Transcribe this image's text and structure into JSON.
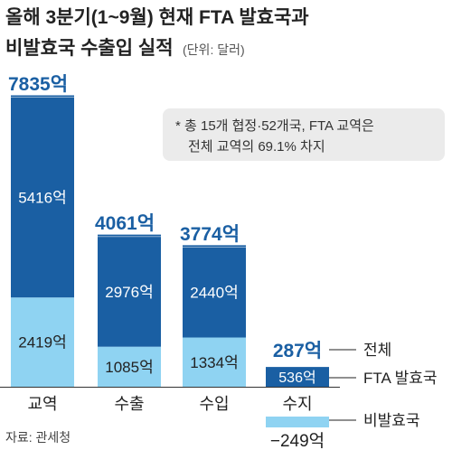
{
  "chart_data": {
    "type": "bar",
    "title": "올해 3분기(1~9월) 현재 FTA 발효국과",
    "subtitle_main": "비발효국 수출입 실적",
    "subtitle_unit": "(단위: 달러)",
    "note": [
      "* 총 15개 협정·52개국, FTA 교역은",
      "전체 교역의 69.1% 차지"
    ],
    "source": "자료: 관세청",
    "categories": [
      "교역",
      "수출",
      "수입",
      "수지"
    ],
    "series": [
      {
        "name": "FTA 발효국",
        "values": [
          5416,
          2976,
          2440,
          536
        ],
        "labels": [
          "5416억",
          "2976억",
          "2440억",
          "536억"
        ]
      },
      {
        "name": "비발효국",
        "values": [
          2419,
          1085,
          1334,
          -249
        ],
        "labels": [
          "2419억",
          "1085억",
          "1334억",
          "−249억"
        ]
      }
    ],
    "totals": {
      "name": "전체",
      "values": [
        7835,
        4061,
        3774,
        287
      ],
      "labels": [
        "7835억",
        "4061억",
        "3774억",
        "287억"
      ]
    },
    "colors": {
      "fta": "#1a5fa3",
      "non_fta": "#8fd3f2",
      "total_text": "#1a5fa3",
      "note_bg": "#ebebeb",
      "text": "#222222"
    },
    "ylim": [
      -249,
      7835
    ]
  }
}
